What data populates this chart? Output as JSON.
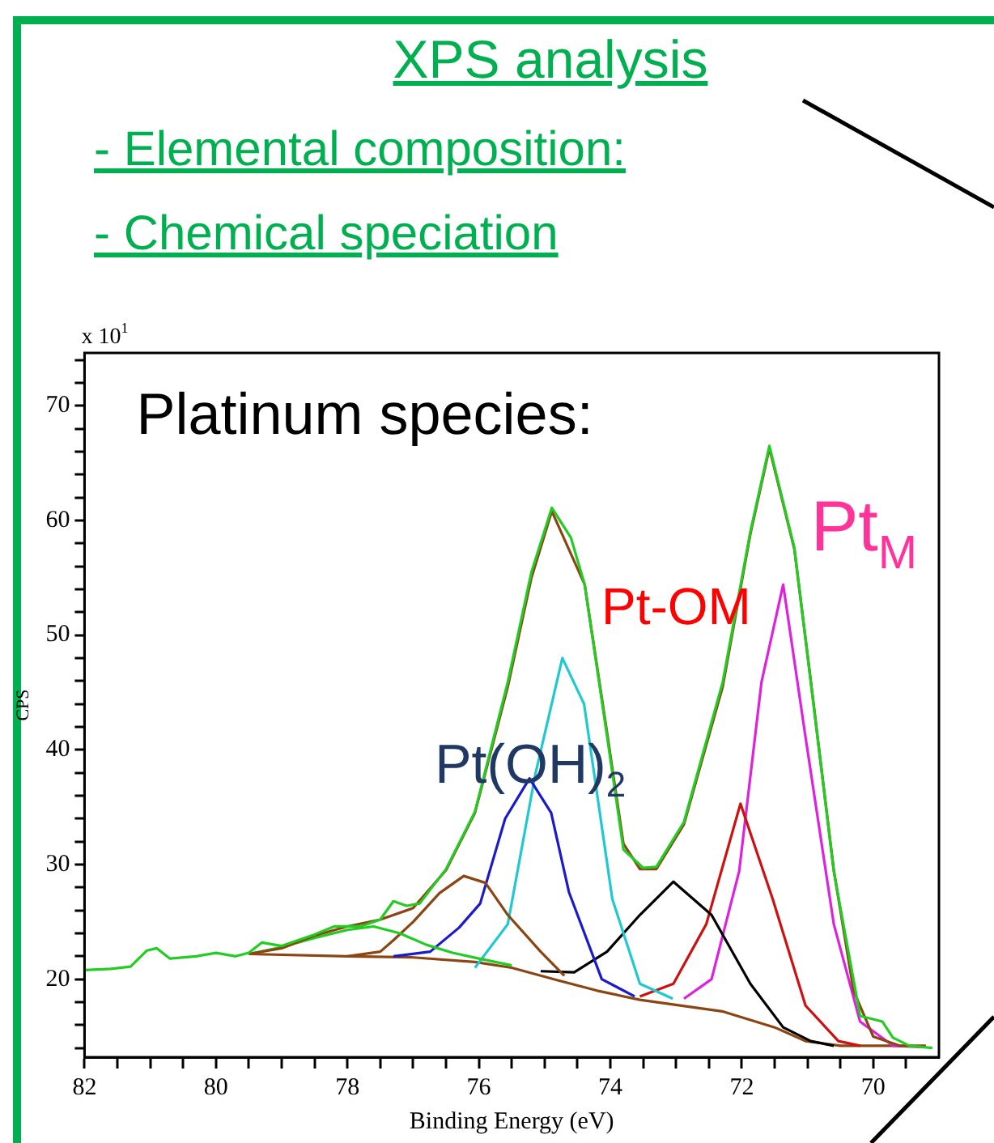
{
  "chart_data": {
    "type": "line",
    "title": "XPS analysis",
    "subtitle": "- Elemental composition:",
    "xlabel": "Binding Energy (eV)",
    "ylabel": "CPS",
    "annotations": [
      "- Chemical speciation",
      "x 10$^{1}$",
      "Platinum species:",
      "Pt(OH)$_{2}$",
      "Pt-OM",
      "Pt$_{M}$"
    ],
    "xlim": [
      82,
      69
    ],
    "ylim": [
      13.2,
      74.6
    ],
    "xticks": [
      82,
      {
        "value": 81.5,
        "label": null
      },
      {
        "value": 81,
        "label": null
      },
      {
        "value": 80.5,
        "label": null
      },
      80,
      {
        "value": 79.5,
        "label": null
      },
      {
        "value": 79,
        "label": null
      },
      {
        "value": 78.5,
        "label": null
      },
      78,
      {
        "value": 77.5,
        "label": null
      },
      {
        "value": 77,
        "label": null
      },
      {
        "value": 76.5,
        "label": null
      },
      76,
      {
        "value": 75.5,
        "label": null
      },
      {
        "value": 75,
        "label": null
      },
      {
        "value": 74.5,
        "label": null
      },
      74,
      {
        "value": 73.5,
        "label": null
      },
      {
        "value": 73,
        "label": null
      },
      {
        "value": 72.5,
        "label": null
      },
      72,
      {
        "value": 71.5,
        "label": null
      },
      {
        "value": 71,
        "label": null
      },
      {
        "value": 70.5,
        "label": null
      },
      70,
      {
        "value": 69.5,
        "label": null
      }
    ],
    "yticks": [
      {
        "value": 14,
        "label": null
      },
      {
        "value": 16,
        "label": null
      },
      {
        "value": 18,
        "label": null
      },
      20,
      {
        "value": 22,
        "label": null
      },
      {
        "value": 24,
        "label": null
      },
      {
        "value": 26,
        "label": null
      },
      {
        "value": 28,
        "label": null
      },
      30,
      {
        "value": 32,
        "label": null
      },
      {
        "value": 34,
        "label": null
      },
      {
        "value": 36,
        "label": null
      },
      {
        "value": 38,
        "label": null
      },
      40,
      {
        "value": 42,
        "label": null
      },
      {
        "value": 44,
        "label": null
      },
      {
        "value": 46,
        "label": null
      },
      {
        "value": 48,
        "label": null
      },
      50,
      {
        "value": 52,
        "label": null
      },
      {
        "value": 54,
        "label": null
      },
      {
        "value": 56,
        "label": null
      },
      {
        "value": 58,
        "label": null
      },
      60,
      {
        "value": 62,
        "label": null
      },
      {
        "value": 64,
        "label": null
      },
      {
        "value": 66,
        "label": null
      },
      {
        "value": 68,
        "label": null
      },
      70,
      {
        "value": 72,
        "label": null
      },
      {
        "value": 74,
        "label": null
      }
    ],
    "grid": false,
    "legend": false,
    "marker": "none",
    "line_style": "solid",
    "series": [
      {
        "color": "#22cc22",
        "x": [
          82,
          81.6,
          81.3,
          81.05,
          80.9,
          80.7,
          80.3,
          80,
          79.7,
          79.5,
          79.3,
          79,
          78.5,
          78.2,
          77.8,
          77.5,
          77.3,
          77.1,
          76.9,
          76.5,
          76.06,
          75.56,
          75.2,
          74.89,
          74.6,
          74.39,
          74.05,
          73.8,
          73.5,
          73.3,
          72.88,
          72.29,
          71.87,
          71.58,
          71.2,
          70.95,
          70.6,
          70.2,
          69.86,
          69.7,
          69.45,
          69.1
        ],
        "values": [
          20.8,
          20.9,
          21.1,
          22.5,
          22.7,
          21.8,
          22,
          22.3,
          22,
          22.3,
          23.2,
          22.9,
          23.9,
          24.6,
          24.6,
          25.2,
          26.8,
          26.4,
          26.6,
          29.6,
          34.6,
          45.9,
          55.5,
          61.1,
          58.5,
          54.4,
          41.2,
          31.3,
          29.7,
          29.8,
          33.7,
          45.9,
          59,
          66.5,
          57.6,
          45.9,
          29.4,
          16.8,
          16.3,
          14.9,
          14.2,
          14
        ]
      },
      {
        "color": "#8b4513",
        "x": [
          79.5,
          79,
          78.5,
          78,
          77.5,
          77,
          76.5,
          76.06,
          75.56,
          75.2,
          74.89,
          74.39,
          74.05,
          73.8,
          73.55,
          73.3,
          72.88,
          72.29,
          71.87,
          71.58,
          71.2,
          70.95,
          70.6,
          70.3,
          70,
          69.6,
          69.2
        ],
        "values": [
          22.2,
          22.7,
          23.8,
          24.6,
          25.2,
          26.2,
          29.5,
          34.5,
          45.5,
          55,
          60.8,
          54.4,
          41.5,
          31.8,
          29.6,
          29.6,
          33.5,
          45.5,
          58.8,
          66.3,
          57.5,
          46,
          29.5,
          19,
          15,
          14.2,
          14.1
        ]
      },
      {
        "color": "#22cc22",
        "x": [
          79.5,
          79,
          78.5,
          78,
          77.6,
          77.2,
          76.8,
          76.4,
          76,
          75.5
        ],
        "values": [
          22.2,
          22.8,
          23.6,
          24.3,
          24.6,
          24,
          23,
          22.3,
          21.8,
          21.2
        ]
      },
      {
        "color": "#8b4513",
        "x": [
          78,
          77.5,
          77.3,
          77,
          76.6,
          76.23,
          75.9,
          75.56,
          75.06,
          74.7
        ],
        "values": [
          22,
          22.4,
          23.4,
          25,
          27.5,
          29,
          28.4,
          25.6,
          22.4,
          20.3
        ]
      },
      {
        "color": "#1a1acc",
        "x": [
          77.3,
          76.74,
          76.3,
          75.98,
          75.6,
          75.23,
          74.9,
          74.63,
          74.13,
          73.63
        ],
        "values": [
          22,
          22.4,
          24.5,
          26.6,
          34,
          37.5,
          34.5,
          27.6,
          20,
          18.5
        ]
      },
      {
        "color": "#20c8d0",
        "x": [
          76.06,
          75.56,
          75.14,
          74.73,
          74.4,
          73.97,
          73.55,
          73.05
        ],
        "values": [
          21,
          24.8,
          37.9,
          48,
          44,
          27,
          19.6,
          18.3
        ]
      },
      {
        "color": "#000000",
        "x": [
          75.06,
          74.55,
          74.05,
          73.55,
          73.04,
          72.46,
          71.87,
          71.37,
          70.95,
          70.6
        ],
        "values": [
          20.7,
          20.6,
          22.4,
          25.6,
          28.5,
          25.6,
          19.6,
          15.8,
          14.6,
          14.2
        ]
      },
      {
        "color": "#cc1111",
        "x": [
          73.55,
          73.04,
          72.54,
          72.02,
          71.53,
          71.03,
          70.53,
          70.2
        ],
        "values": [
          18.5,
          19.6,
          24.8,
          35.3,
          27,
          17.7,
          14.6,
          14.2
        ]
      },
      {
        "color": "#dd22dd",
        "x": [
          72.88,
          72.46,
          72.04,
          71.7,
          71.37,
          71.03,
          70.6,
          70.2,
          69.7,
          69.3
        ],
        "values": [
          18.3,
          20,
          29.4,
          45.9,
          54.4,
          41.1,
          24.8,
          16.3,
          14.2,
          14.1
        ]
      },
      {
        "color": "#8b4513",
        "x": [
          79.5,
          78,
          77,
          76.06,
          75.5,
          74.8,
          74.2,
          73.55,
          72.3,
          71.5,
          71.03,
          70.5,
          69.2
        ],
        "values": [
          22.2,
          22,
          21.9,
          21.5,
          21,
          19.9,
          19,
          18.2,
          17.2,
          15.8,
          14.6,
          14.2,
          14.2
        ]
      }
    ]
  }
}
